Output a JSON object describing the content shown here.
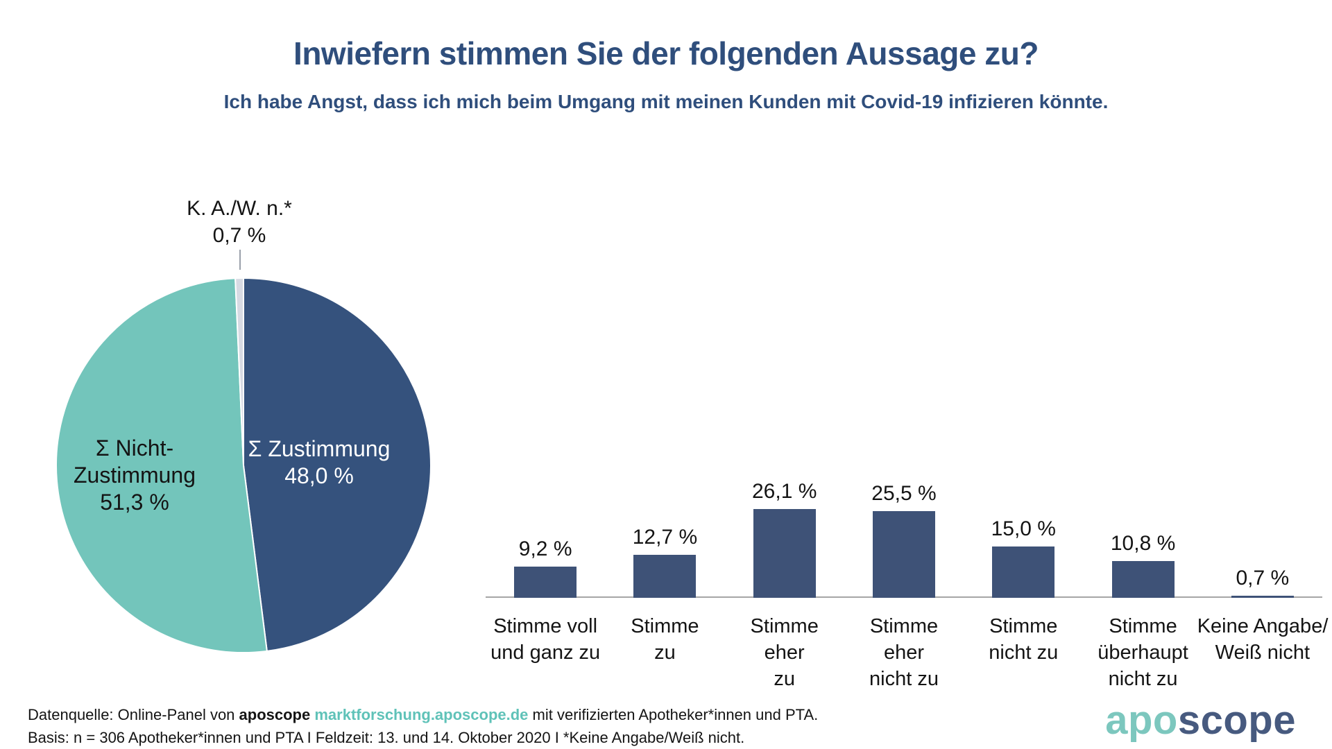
{
  "title": "Inwiefern stimmen Sie der folgenden Aussage zu?",
  "subtitle": "Ich habe Angst, dass ich mich beim Umgang mit meinen Kunden mit Covid-19 infizieren könnte.",
  "pie": {
    "type": "pie",
    "slices": [
      {
        "name": "Σ Zustimmung",
        "value": 48.0,
        "value_label": "48,0 %",
        "color": "#35527d",
        "label_color": "#ffffff",
        "label_lines": [
          "Σ Zustimmung",
          "48,0 %"
        ]
      },
      {
        "name": "Σ Nicht-Zustimmung",
        "value": 51.3,
        "value_label": "51,3 %",
        "color": "#73c5bb",
        "label_color": "#141414",
        "label_lines": [
          "Σ Nicht-",
          "Zustimmung",
          "51,3 %"
        ]
      },
      {
        "name": "K. A./W. n.*",
        "value": 0.7,
        "value_label": "0,7 %",
        "color": "#d7dae3",
        "label_color": "#141414",
        "label_lines": [
          "K. A./W. n.*",
          "0,7 %"
        ]
      }
    ]
  },
  "chart_data": {
    "type": "bar",
    "title": "Inwiefern stimmen Sie der folgenden Aussage zu?",
    "subtitle": "Ich habe Angst, dass ich mich beim Umgang mit meinen Kunden mit Covid-19 infizieren könnte.",
    "categories": [
      "Stimme voll und ganz zu",
      "Stimme zu",
      "Stimme eher zu",
      "Stimme eher nicht zu",
      "Stimme nicht zu",
      "Stimme überhaupt nicht zu",
      "Keine Angabe/Weiß nicht"
    ],
    "category_lines": [
      [
        "Stimme voll",
        "und ganz zu"
      ],
      [
        "Stimme",
        "zu"
      ],
      [
        "Stimme",
        "eher",
        "zu"
      ],
      [
        "Stimme",
        "eher",
        "nicht zu"
      ],
      [
        "Stimme",
        "nicht zu"
      ],
      [
        "Stimme",
        "überhaupt",
        "nicht zu"
      ],
      [
        "Keine Angabe/",
        "Weiß nicht"
      ]
    ],
    "values": [
      9.2,
      12.7,
      26.1,
      25.5,
      15.0,
      10.8,
      0.7
    ],
    "value_labels": [
      "9,2 %",
      "12,7 %",
      "26,1 %",
      "25,5 %",
      "15,0 %",
      "10,8 %",
      "0,7 %"
    ],
    "bar_color": "#3e5277",
    "axis_color": "#a6a6a6",
    "ylim": [
      0,
      30
    ],
    "grid": false,
    "legend": "none"
  },
  "footer": {
    "line1_segments": [
      {
        "text": "Datenquelle: Online-Panel von ",
        "bold": false,
        "color": null,
        "link": false
      },
      {
        "text": "aposcope ",
        "bold": true,
        "color": null,
        "link": false
      },
      {
        "text": "marktforschung.aposcope.de",
        "bold": true,
        "color": "#5fc2b8",
        "link": true
      },
      {
        "text": " mit verifizierten Apotheker*innen und PTA.",
        "bold": false,
        "color": null,
        "link": false
      }
    ],
    "line2": "Basis: n = 306 Apotheker*innen und PTA I Feldzeit: 13. und 14. Oktober 2020 I *Keine Angabe/Weiß nicht."
  },
  "logo": {
    "part1": "apo",
    "part2": "scope",
    "color1": "#7cc7be",
    "color2": "#475a7f"
  }
}
